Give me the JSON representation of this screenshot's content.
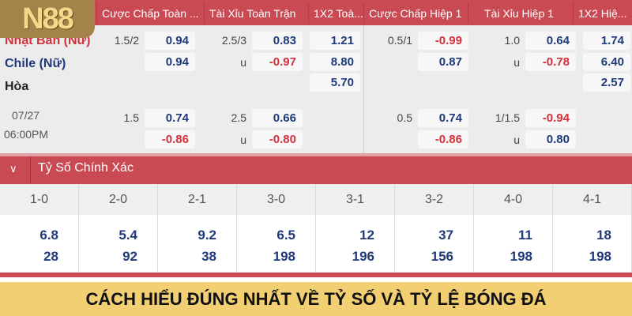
{
  "logo": "N88",
  "headers": [
    "Cược Chấp Toàn ...",
    "Tài Xỉu Toàn Trận",
    "1X2 Toà...",
    "Cược Chấp Hiệp 1",
    "Tài Xỉu Hiệp 1",
    "1X2 Hiệ..."
  ],
  "match": {
    "home": "Nhật Bản (Nữ)",
    "away": "Chile (Nữ)",
    "draw": "Hòa",
    "date": "07/27",
    "time": "06:00PM"
  },
  "main_line": {
    "hdp_ft": {
      "line": "1.5/2",
      "home": "0.94",
      "away": "0.94"
    },
    "ou_ft": {
      "line": "2.5/3",
      "over": "0.83",
      "under_label": "u",
      "under": "-0.97"
    },
    "x12_ft": {
      "home": "1.21",
      "away": "8.80",
      "draw": "5.70"
    },
    "hdp_h1": {
      "line": "0.5/1",
      "home": "-0.99",
      "away": "0.87"
    },
    "ou_h1": {
      "line": "1.0",
      "over": "0.64",
      "under_label": "u",
      "under": "-0.78"
    },
    "x12_h1": {
      "home": "1.74",
      "away": "6.40",
      "draw": "2.57"
    }
  },
  "alt_line": {
    "hdp_ft": {
      "line": "1.5",
      "home": "0.74",
      "away": "-0.86"
    },
    "ou_ft": {
      "line": "2.5",
      "over": "0.66",
      "under_label": "u",
      "under": "-0.80"
    },
    "hdp_h1": {
      "line": "0.5",
      "home": "0.74",
      "away": "-0.86"
    },
    "ou_h1": {
      "line": "1/1.5",
      "over": "-0.94",
      "under_label": "u",
      "under": "0.80"
    }
  },
  "correct_score": {
    "title": "Tỷ Số Chính Xác",
    "toggle_icon": "chevron-down-icon",
    "scores": [
      {
        "score": "1-0",
        "home": "6.8",
        "away": "28"
      },
      {
        "score": "2-0",
        "home": "5.4",
        "away": "92"
      },
      {
        "score": "2-1",
        "home": "9.2",
        "away": "38"
      },
      {
        "score": "3-0",
        "home": "6.5",
        "away": "198"
      },
      {
        "score": "3-1",
        "home": "12",
        "away": "196"
      },
      {
        "score": "3-2",
        "home": "37",
        "away": "156"
      },
      {
        "score": "4-0",
        "home": "11",
        "away": "198"
      },
      {
        "score": "4-1",
        "home": "18",
        "away": "198"
      }
    ]
  },
  "banner": "CÁCH HIỂU ĐÚNG NHẤT VỀ TỶ SỐ VÀ TỶ LỆ BÓNG ĐÁ",
  "colors": {
    "header": "#c94a52",
    "positive": "#1f3a7a",
    "negative": "#d3313b",
    "banner": "#f3cf73"
  }
}
